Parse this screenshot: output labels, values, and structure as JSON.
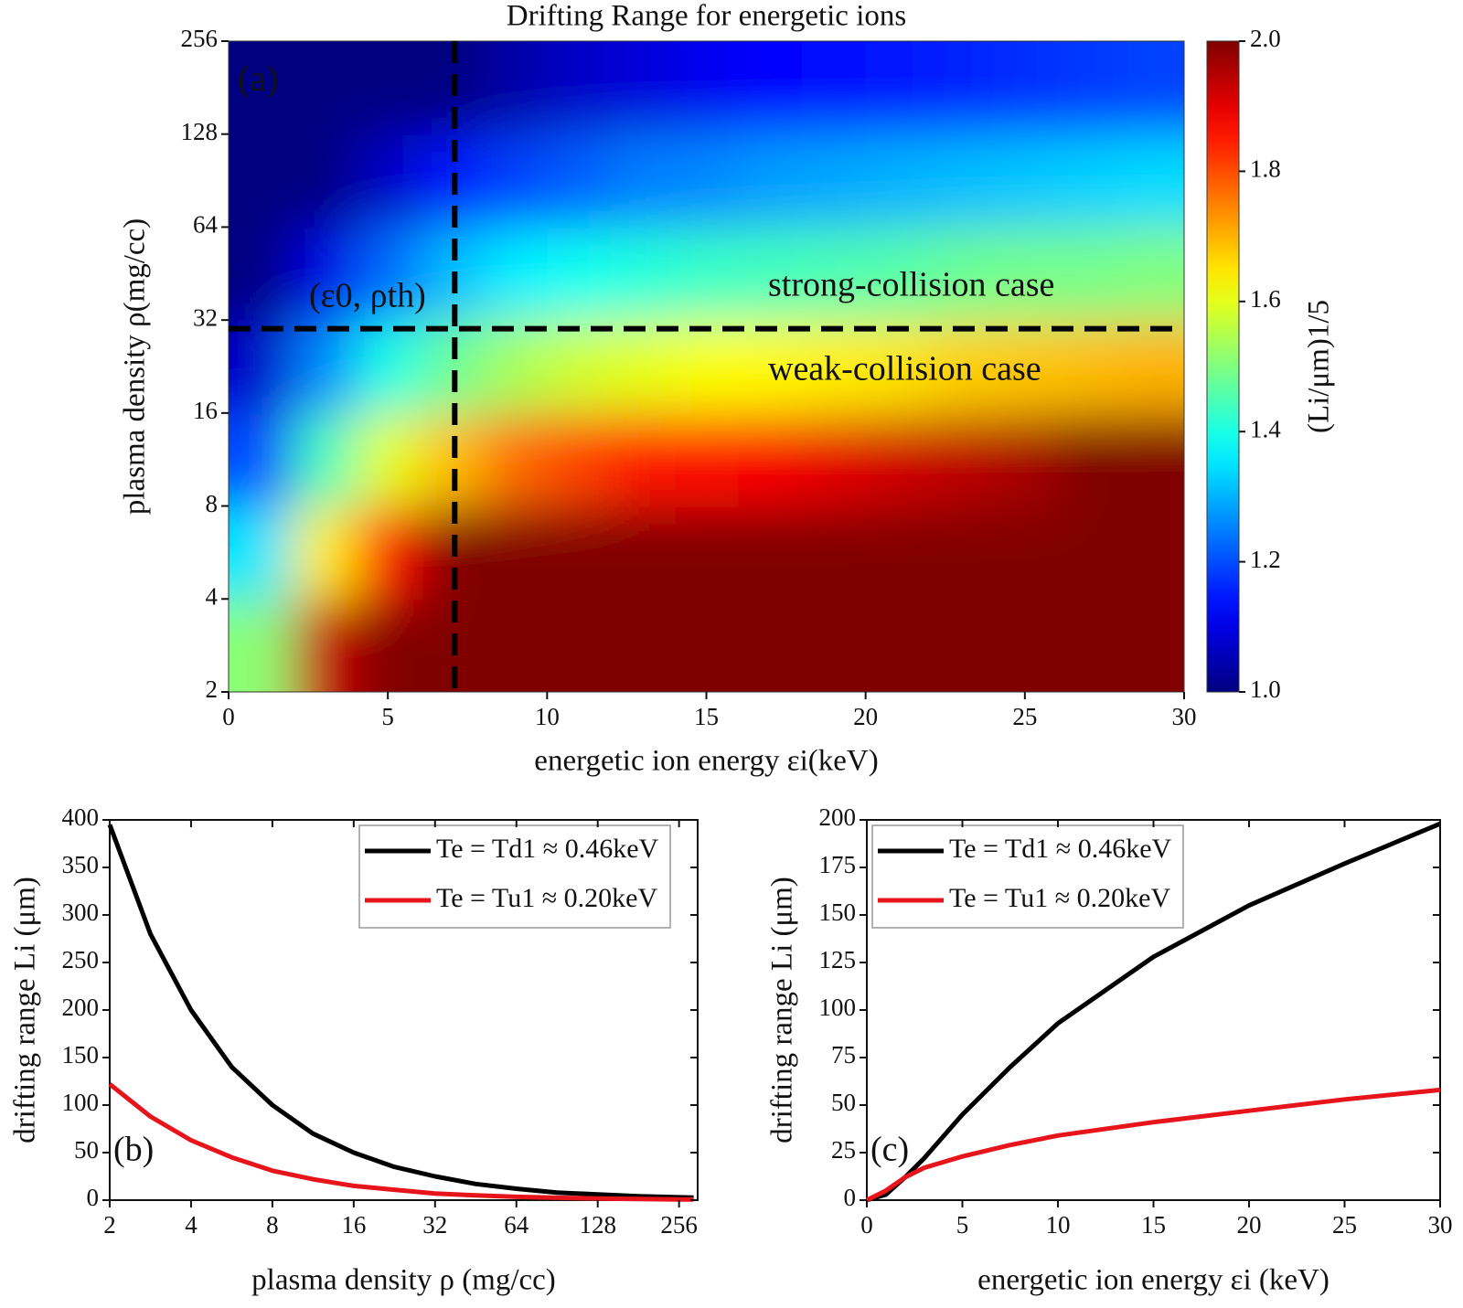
{
  "chart_data": [
    {
      "type": "heatmap",
      "title": "Drifting Range for energetic ions",
      "x_label": "energetic ion energy εi(keV)",
      "y_label": "plasma density ρ(mg/cc)",
      "x": [
        1,
        3,
        5,
        7,
        9,
        11,
        13,
        15,
        17,
        19,
        21,
        23,
        25,
        27,
        29
      ],
      "y": [
        2.83,
        5.66,
        11.3,
        22.6,
        45.3,
        90.5,
        181
      ],
      "z": [
        [
          1.51,
          1.93,
          2,
          2,
          2,
          2,
          2,
          2,
          2,
          2,
          2,
          2,
          2,
          2,
          2
        ],
        [
          1.35,
          1.64,
          1.86,
          2,
          2,
          2,
          2,
          2,
          2,
          2,
          2,
          2,
          2,
          2,
          2
        ],
        [
          1.2,
          1.44,
          1.6,
          1.69,
          1.77,
          1.81,
          1.85,
          1.86,
          1.88,
          1.9,
          1.92,
          1.94,
          1.96,
          2,
          2
        ],
        [
          1.07,
          1.26,
          1.4,
          1.48,
          1.54,
          1.58,
          1.6,
          1.62,
          1.63,
          1.64,
          1.65,
          1.67,
          1.68,
          1.69,
          1.7
        ],
        [
          1,
          1.1,
          1.23,
          1.31,
          1.36,
          1.39,
          1.41,
          1.43,
          1.44,
          1.45,
          1.46,
          1.48,
          1.49,
          1.49,
          1.5
        ],
        [
          1,
          1,
          1.07,
          1.15,
          1.19,
          1.22,
          1.25,
          1.26,
          1.28,
          1.29,
          1.3,
          1.31,
          1.32,
          1.33,
          1.34
        ],
        [
          1,
          1,
          1,
          1,
          1.04,
          1.07,
          1.09,
          1.11,
          1.13,
          1.14,
          1.15,
          1.16,
          1.17,
          1.18,
          1.19
        ]
      ],
      "xlim": [
        0,
        30
      ],
      "xticks": [
        0,
        5,
        10,
        15,
        20,
        25,
        30
      ],
      "ylim": [
        2,
        256
      ],
      "yticks": [
        2,
        4,
        8,
        16,
        32,
        64,
        128,
        256
      ],
      "y_scale": "log2",
      "colormap": "jet",
      "zlim": [
        1,
        2
      ],
      "zticks": [
        {
          "value": 1,
          "label": "1.0"
        },
        1.2,
        1.4,
        1.6,
        1.8,
        {
          "value": 2,
          "label": "2.0"
        }
      ],
      "colorbar_label": "(Li/μm)1/5",
      "annotations": [
        "(a)",
        "(ε0, ρth)",
        "strong-collision case",
        "weak-collision case"
      ],
      "reference_lines": {
        "x": 7.1,
        "y": 30
      },
      "reference_line_color": "#000000"
    },
    {
      "type": "line",
      "x_label": "plasma density ρ (mg/cc)",
      "y_label": "drifting range Li (μm)",
      "x": [
        2,
        2.83,
        4,
        5.66,
        8,
        11.3,
        16,
        22.6,
        32,
        45.3,
        64,
        90.5,
        128,
        181,
        256,
        290
      ],
      "series": [
        {
          "name": "Te = Td1 ≈ 0.46keV",
          "color": "#000000",
          "values": [
            395,
            280,
            200,
            140,
            100,
            70,
            50,
            35,
            25,
            17,
            12,
            8,
            6,
            4,
            3,
            2.7
          ]
        },
        {
          "name": "Te = Tu1 ≈ 0.20keV",
          "color": "#e8141b",
          "values": [
            122,
            88,
            63,
            45,
            31,
            22,
            15,
            11,
            7,
            5,
            3.5,
            2.5,
            1.7,
            1.2,
            0.8,
            0.7
          ]
        }
      ],
      "xlim": [
        2,
        300
      ],
      "xticks": [
        2,
        4,
        8,
        16,
        32,
        64,
        128,
        256
      ],
      "x_scale": "log2",
      "ylim": [
        0,
        400
      ],
      "yticks": [
        0,
        50,
        100,
        150,
        200,
        250,
        300,
        350,
        400
      ],
      "legend": "upper right",
      "annotations": [
        "(b)"
      ]
    },
    {
      "type": "line",
      "x_label": "energetic ion energy εi (keV)",
      "y_label": "drifting range Li (μm)",
      "x": [
        0,
        1,
        2,
        3,
        5,
        7.5,
        10,
        15,
        20,
        25,
        30
      ],
      "series": [
        {
          "name": "Te = Td1 ≈ 0.46keV",
          "color": "#000000",
          "values": [
            0,
            3,
            12,
            22,
            45,
            70,
            93,
            128,
            155,
            177,
            198
          ]
        },
        {
          "name": "Te = Tu1 ≈ 0.20keV",
          "color": "#e8141b",
          "values": [
            0,
            5,
            12,
            17,
            23,
            29,
            34,
            41,
            47,
            53,
            58
          ]
        }
      ],
      "xlim": [
        0,
        30
      ],
      "xticks": [
        0,
        5,
        10,
        15,
        20,
        25,
        30
      ],
      "ylim": [
        0,
        200
      ],
      "yticks": [
        0,
        25,
        50,
        75,
        100,
        125,
        150,
        175,
        200
      ],
      "legend": "upper left",
      "annotations": [
        "(c)"
      ]
    }
  ]
}
